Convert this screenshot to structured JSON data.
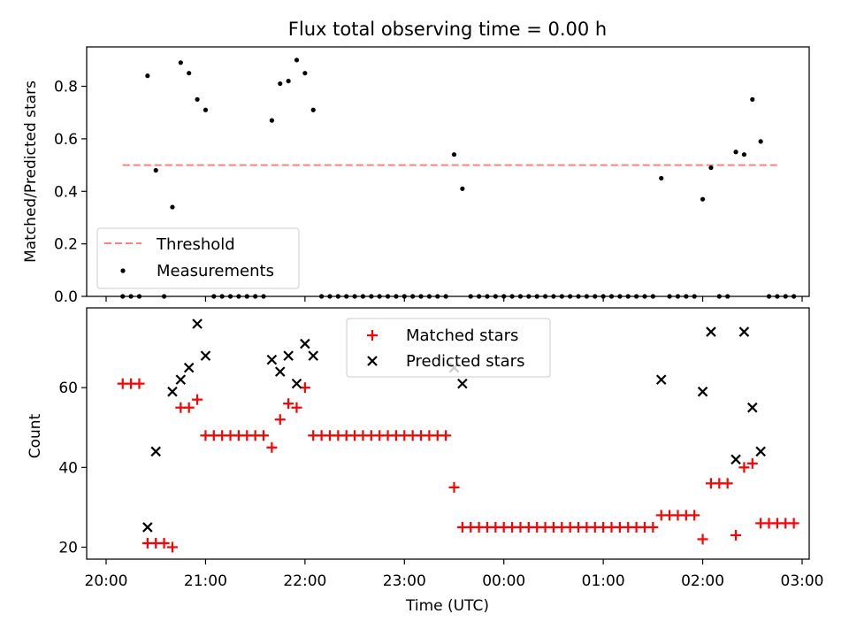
{
  "colors": {
    "threshold": "#ff7f7f",
    "measurements": "#000000",
    "matched": "#ff0000",
    "predicted": "#000000"
  },
  "chart_data": [
    {
      "type": "scatter",
      "title": "Flux total observing time = 0.00 h",
      "xlabel": "",
      "ylabel": "Matched/Predicted stars",
      "xlim": [
        "20:00",
        "03:00"
      ],
      "ylim": [
        0,
        0.95
      ],
      "yticks": [
        "0.0",
        "0.2",
        "0.4",
        "0.6",
        "0.8"
      ],
      "grid": false,
      "legend": {
        "position": "lower-left",
        "entries": [
          "Threshold",
          "Measurements"
        ]
      },
      "threshold": {
        "value": 0.5,
        "x_start": "20:10",
        "x_end": "02:45"
      },
      "series": [
        {
          "name": "Measurements",
          "points": [
            [
              "20:10",
              0
            ],
            [
              "20:15",
              0
            ],
            [
              "20:20",
              0
            ],
            [
              "20:25",
              0.84
            ],
            [
              "20:30",
              0.48
            ],
            [
              "20:35",
              0
            ],
            [
              "20:40",
              0.34
            ],
            [
              "20:45",
              0.89
            ],
            [
              "20:50",
              0.85
            ],
            [
              "20:55",
              0.75
            ],
            [
              "21:00",
              0.71
            ],
            [
              "21:05",
              0
            ],
            [
              "21:10",
              0
            ],
            [
              "21:15",
              0
            ],
            [
              "21:20",
              0
            ],
            [
              "21:25",
              0
            ],
            [
              "21:30",
              0
            ],
            [
              "21:35",
              0
            ],
            [
              "21:40",
              0.67
            ],
            [
              "21:45",
              0.81
            ],
            [
              "21:50",
              0.82
            ],
            [
              "21:55",
              0.9
            ],
            [
              "22:00",
              0.85
            ],
            [
              "22:05",
              0.71
            ],
            [
              "22:10",
              0
            ],
            [
              "22:15",
              0
            ],
            [
              "22:20",
              0
            ],
            [
              "22:25",
              0
            ],
            [
              "22:30",
              0
            ],
            [
              "22:35",
              0
            ],
            [
              "22:40",
              0
            ],
            [
              "22:45",
              0
            ],
            [
              "22:50",
              0
            ],
            [
              "22:55",
              0
            ],
            [
              "23:00",
              0
            ],
            [
              "23:05",
              0
            ],
            [
              "23:10",
              0
            ],
            [
              "23:15",
              0
            ],
            [
              "23:20",
              0
            ],
            [
              "23:25",
              0
            ],
            [
              "23:30",
              0.54
            ],
            [
              "23:35",
              0.41
            ],
            [
              "23:40",
              0
            ],
            [
              "23:45",
              0
            ],
            [
              "23:50",
              0
            ],
            [
              "23:55",
              0
            ],
            [
              "00:00",
              0
            ],
            [
              "00:05",
              0
            ],
            [
              "00:10",
              0
            ],
            [
              "00:15",
              0
            ],
            [
              "00:20",
              0
            ],
            [
              "00:25",
              0
            ],
            [
              "00:30",
              0
            ],
            [
              "00:35",
              0
            ],
            [
              "00:40",
              0
            ],
            [
              "00:45",
              0
            ],
            [
              "00:50",
              0
            ],
            [
              "00:55",
              0
            ],
            [
              "01:00",
              0
            ],
            [
              "01:05",
              0
            ],
            [
              "01:10",
              0
            ],
            [
              "01:15",
              0
            ],
            [
              "01:20",
              0
            ],
            [
              "01:25",
              0
            ],
            [
              "01:30",
              0
            ],
            [
              "01:35",
              0.45
            ],
            [
              "01:40",
              0
            ],
            [
              "01:45",
              0
            ],
            [
              "01:50",
              0
            ],
            [
              "01:55",
              0
            ],
            [
              "02:00",
              0.37
            ],
            [
              "02:05",
              0.49
            ],
            [
              "02:10",
              0
            ],
            [
              "02:15",
              0
            ],
            [
              "02:20",
              0.55
            ],
            [
              "02:25",
              0.54
            ],
            [
              "02:30",
              0.75
            ],
            [
              "02:35",
              0.59
            ],
            [
              "02:40",
              0
            ],
            [
              "02:45",
              0
            ],
            [
              "02:50",
              0
            ],
            [
              "02:55",
              0
            ]
          ]
        }
      ]
    },
    {
      "type": "scatter",
      "title": "",
      "xlabel": "Time (UTC)",
      "ylabel": "Count",
      "xlim": [
        "20:00",
        "03:00"
      ],
      "ylim": [
        17,
        80
      ],
      "xticks": [
        "20:00",
        "21:00",
        "22:00",
        "23:00",
        "00:00",
        "01:00",
        "02:00",
        "03:00"
      ],
      "yticks": [
        "20",
        "40",
        "60"
      ],
      "grid": false,
      "legend": {
        "position": "top-center",
        "entries": [
          "Matched stars",
          "Predicted stars"
        ]
      },
      "series": [
        {
          "name": "Matched stars",
          "points": [
            [
              "20:10",
              61
            ],
            [
              "20:15",
              61
            ],
            [
              "20:20",
              61
            ],
            [
              "20:25",
              21
            ],
            [
              "20:30",
              21
            ],
            [
              "20:35",
              21
            ],
            [
              "20:40",
              20
            ],
            [
              "20:45",
              55
            ],
            [
              "20:50",
              55
            ],
            [
              "20:55",
              57
            ],
            [
              "21:00",
              48
            ],
            [
              "21:05",
              48
            ],
            [
              "21:10",
              48
            ],
            [
              "21:15",
              48
            ],
            [
              "21:20",
              48
            ],
            [
              "21:25",
              48
            ],
            [
              "21:30",
              48
            ],
            [
              "21:35",
              48
            ],
            [
              "21:40",
              45
            ],
            [
              "21:45",
              52
            ],
            [
              "21:50",
              56
            ],
            [
              "21:55",
              55
            ],
            [
              "22:00",
              60
            ],
            [
              "22:05",
              48
            ],
            [
              "22:10",
              48
            ],
            [
              "22:15",
              48
            ],
            [
              "22:20",
              48
            ],
            [
              "22:25",
              48
            ],
            [
              "22:30",
              48
            ],
            [
              "22:35",
              48
            ],
            [
              "22:40",
              48
            ],
            [
              "22:45",
              48
            ],
            [
              "22:50",
              48
            ],
            [
              "22:55",
              48
            ],
            [
              "23:00",
              48
            ],
            [
              "23:05",
              48
            ],
            [
              "23:10",
              48
            ],
            [
              "23:15",
              48
            ],
            [
              "23:20",
              48
            ],
            [
              "23:25",
              48
            ],
            [
              "23:30",
              35
            ],
            [
              "23:35",
              25
            ],
            [
              "23:40",
              25
            ],
            [
              "23:45",
              25
            ],
            [
              "23:50",
              25
            ],
            [
              "23:55",
              25
            ],
            [
              "00:00",
              25
            ],
            [
              "00:05",
              25
            ],
            [
              "00:10",
              25
            ],
            [
              "00:15",
              25
            ],
            [
              "00:20",
              25
            ],
            [
              "00:25",
              25
            ],
            [
              "00:30",
              25
            ],
            [
              "00:35",
              25
            ],
            [
              "00:40",
              25
            ],
            [
              "00:45",
              25
            ],
            [
              "00:50",
              25
            ],
            [
              "00:55",
              25
            ],
            [
              "01:00",
              25
            ],
            [
              "01:05",
              25
            ],
            [
              "01:10",
              25
            ],
            [
              "01:15",
              25
            ],
            [
              "01:20",
              25
            ],
            [
              "01:25",
              25
            ],
            [
              "01:30",
              25
            ],
            [
              "01:35",
              28
            ],
            [
              "01:40",
              28
            ],
            [
              "01:45",
              28
            ],
            [
              "01:50",
              28
            ],
            [
              "01:55",
              28
            ],
            [
              "02:00",
              22
            ],
            [
              "02:05",
              36
            ],
            [
              "02:10",
              36
            ],
            [
              "02:15",
              36
            ],
            [
              "02:20",
              23
            ],
            [
              "02:25",
              40
            ],
            [
              "02:30",
              41
            ],
            [
              "02:35",
              26
            ],
            [
              "02:40",
              26
            ],
            [
              "02:45",
              26
            ],
            [
              "02:50",
              26
            ],
            [
              "02:55",
              26
            ]
          ]
        },
        {
          "name": "Predicted stars",
          "points": [
            [
              "20:25",
              25
            ],
            [
              "20:30",
              44
            ],
            [
              "20:40",
              59
            ],
            [
              "20:45",
              62
            ],
            [
              "20:50",
              65
            ],
            [
              "20:55",
              76
            ],
            [
              "21:00",
              68
            ],
            [
              "21:40",
              67
            ],
            [
              "21:45",
              64
            ],
            [
              "21:50",
              68
            ],
            [
              "21:55",
              61
            ],
            [
              "22:00",
              71
            ],
            [
              "22:05",
              68
            ],
            [
              "23:30",
              65
            ],
            [
              "23:35",
              61
            ],
            [
              "01:35",
              62
            ],
            [
              "02:00",
              59
            ],
            [
              "02:05",
              74
            ],
            [
              "02:20",
              42
            ],
            [
              "02:25",
              74
            ],
            [
              "02:30",
              55
            ],
            [
              "02:35",
              44
            ]
          ]
        }
      ]
    }
  ]
}
